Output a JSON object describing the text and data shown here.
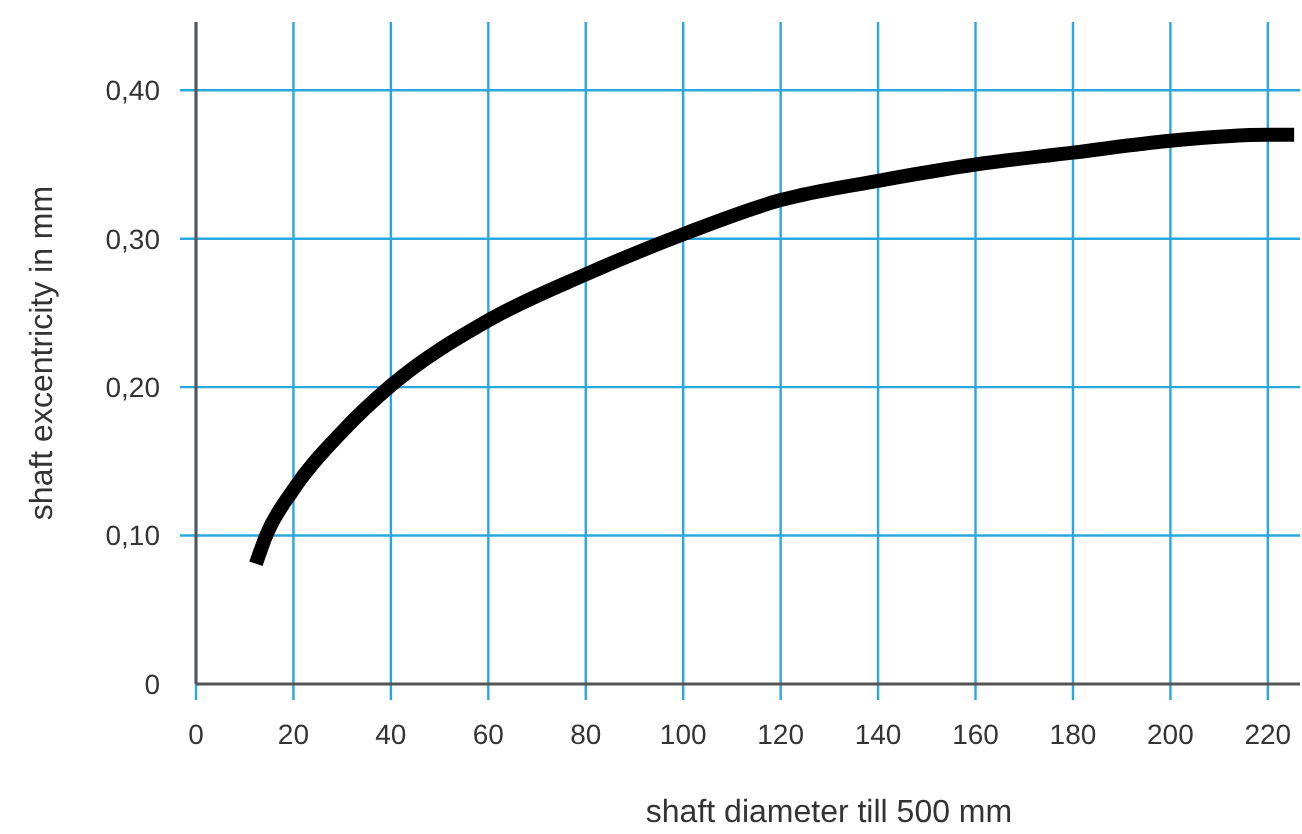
{
  "chart_data": {
    "type": "line",
    "xlabel": "shaft diameter till 500 mm",
    "ylabel": "shaft excentricity in mm",
    "xlim": [
      0,
      226.6
    ],
    "ylim": [
      0,
      0.446
    ],
    "xticks": [
      0,
      20,
      40,
      60,
      80,
      100,
      120,
      140,
      160,
      180,
      200,
      220
    ],
    "yticks": [
      {
        "value": 0,
        "label": "0"
      },
      {
        "value": 0.1,
        "label": "0,10"
      },
      {
        "value": 0.2,
        "label": "0,20"
      },
      {
        "value": 0.3,
        "label": "0,30"
      },
      {
        "value": 0.4,
        "label": "0,40"
      }
    ],
    "grid": true,
    "marker": "none",
    "line_style": "solid",
    "series": [
      {
        "color": "#000000",
        "x": [
          12.3,
          14.4,
          20,
          30,
          40,
          60,
          80,
          100,
          120,
          140,
          160,
          180,
          200,
          220,
          225.4
        ],
        "values": [
          0.081,
          0.1,
          0.131,
          0.17,
          0.201,
          0.245,
          0.276,
          0.303,
          0.326,
          0.339,
          0.35,
          0.358,
          0.366,
          0.37,
          0.37
        ]
      }
    ]
  }
}
